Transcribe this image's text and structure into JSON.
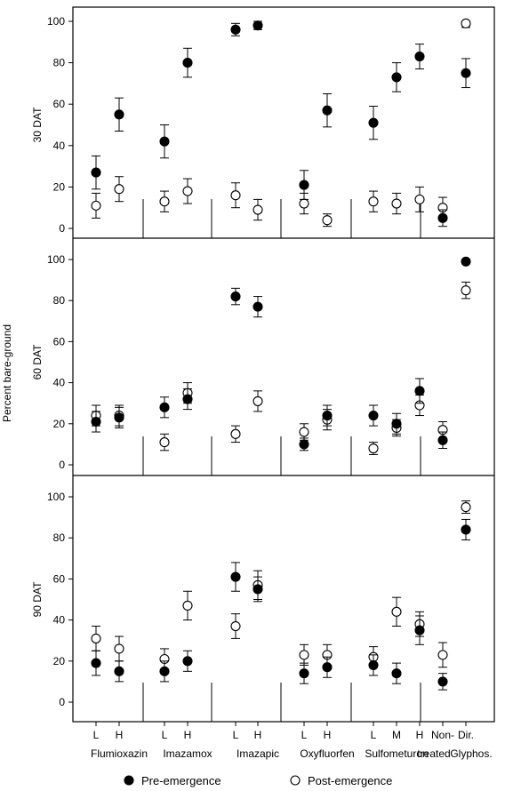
{
  "chart_data": {
    "type": "scatter",
    "ylabel": "Percent bare-ground",
    "ylim": [
      0,
      100
    ],
    "yticks": [
      0,
      20,
      40,
      60,
      80,
      100
    ],
    "grid": false,
    "legend": {
      "placement": "bottom",
      "entries": [
        {
          "name": "Pre-emergence",
          "marker": "filled-circle",
          "color": "#000000"
        },
        {
          "name": "Post-emergence",
          "marker": "open-circle",
          "color": "#000000"
        }
      ]
    },
    "categories": [
      {
        "group": "Flumioxazin",
        "rate": "L"
      },
      {
        "group": "Flumioxazin",
        "rate": "H"
      },
      {
        "group": "Imazamox",
        "rate": "L"
      },
      {
        "group": "Imazamox",
        "rate": "H"
      },
      {
        "group": "Imazapic",
        "rate": "L"
      },
      {
        "group": "Imazapic",
        "rate": "H"
      },
      {
        "group": "Oxyfluorfen",
        "rate": "L"
      },
      {
        "group": "Oxyfluorfen",
        "rate": "H"
      },
      {
        "group": "Sulfometuron",
        "rate": "L"
      },
      {
        "group": "Sulfometuron",
        "rate": "M"
      },
      {
        "group": "Sulfometuron",
        "rate": "H"
      },
      {
        "group": "Non-treated",
        "rate": ""
      },
      {
        "group": "Dir. Glyphos.",
        "rate": ""
      }
    ],
    "rate_labels": [
      "L",
      "H",
      "L",
      "H",
      "L",
      "H",
      "L",
      "H",
      "L",
      "M",
      "H",
      "Non-",
      "Dir."
    ],
    "group_labels": [
      {
        "text": "Flumioxazin"
      },
      {
        "text": "Imazamox"
      },
      {
        "text": "Imazapic"
      },
      {
        "text": "Oxyfluorfen"
      },
      {
        "text": "Sulfometuron"
      },
      {
        "text": "treated"
      },
      {
        "text": "Glyphos."
      }
    ],
    "panels": [
      {
        "label": "30 DAT",
        "series": [
          {
            "name": "Pre-emergence",
            "values": [
              27,
              55,
              42,
              80,
              96,
              98,
              21,
              57,
              51,
              73,
              83,
              5,
              75
            ],
            "errors": [
              8,
              8,
              8,
              7,
              3,
              2,
              7,
              8,
              8,
              7,
              6,
              4,
              7
            ]
          },
          {
            "name": "Post-emergence",
            "values": [
              11,
              19,
              13,
              18,
              16,
              9,
              12,
              4,
              13,
              12,
              14,
              10,
              99
            ],
            "errors": [
              6,
              6,
              5,
              6,
              6,
              5,
              5,
              3,
              5,
              5,
              6,
              5,
              2
            ]
          }
        ]
      },
      {
        "label": "60 DAT",
        "series": [
          {
            "name": "Pre-emergence",
            "values": [
              21,
              23,
              28,
              32,
              82,
              77,
              10,
              24,
              24,
              20,
              36,
              12,
              99
            ],
            "errors": [
              5,
              5,
              5,
              5,
              4,
              5,
              3,
              5,
              5,
              5,
              6,
              4,
              1
            ]
          },
          {
            "name": "Post-emergence",
            "values": [
              24,
              24,
              11,
              35,
              15,
              31,
              16,
              22,
              8,
              18,
              29,
              17,
              85
            ],
            "errors": [
              5,
              5,
              4,
              5,
              4,
              5,
              4,
              5,
              3,
              4,
              5,
              4,
              4
            ]
          }
        ]
      },
      {
        "label": "90 DAT",
        "series": [
          {
            "name": "Pre-emergence",
            "values": [
              19,
              15,
              15,
              20,
              61,
              55,
              14,
              17,
              18,
              14,
              35,
              10,
              84
            ],
            "errors": [
              6,
              5,
              5,
              5,
              7,
              6,
              5,
              5,
              5,
              5,
              7,
              4,
              5
            ]
          },
          {
            "name": "Post-emergence",
            "values": [
              31,
              26,
              21,
              47,
              37,
              57,
              23,
              23,
              22,
              44,
              38,
              23,
              95
            ],
            "errors": [
              6,
              6,
              5,
              7,
              6,
              7,
              5,
              5,
              5,
              7,
              6,
              6,
              3
            ]
          }
        ]
      }
    ]
  }
}
